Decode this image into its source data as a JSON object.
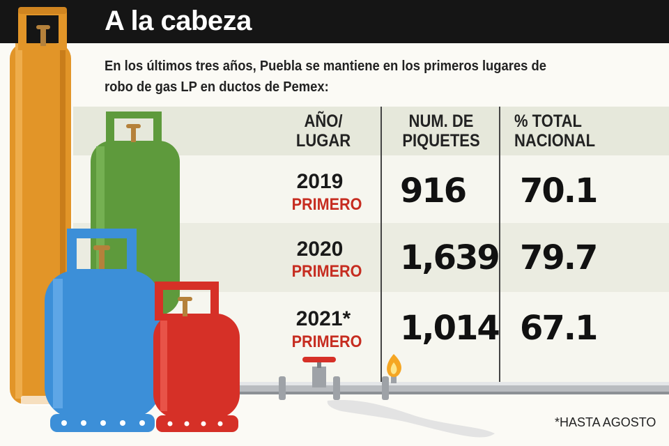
{
  "title": "A la cabeza",
  "subtitle": "En los últimos tres años, Puebla se mantiene en los primeros lugares de robo de gas LP en ductos de Pemex:",
  "table": {
    "headers": [
      "AÑO/ LUGAR",
      "NUM. DE PIQUETES",
      "% TOTAL NACIONAL"
    ],
    "rows": [
      {
        "year": "2019",
        "rank": "PRIMERO",
        "piquetes": "916",
        "pct": "70.1"
      },
      {
        "year": "2020",
        "rank": "PRIMERO",
        "piquetes": "1,639",
        "pct": "79.7"
      },
      {
        "year": "2021*",
        "rank": "PRIMERO",
        "piquetes": "1,014",
        "pct": "67.1"
      }
    ]
  },
  "footnote": "*HASTA AGOSTO",
  "colors": {
    "header_bg": "#151515",
    "rank_red": "#c62c20",
    "tank_orange": "#e29528",
    "tank_green": "#5e9a3c",
    "tank_blue": "#3c8fd8",
    "tank_red": "#d63027",
    "band_tint": "#eceee2"
  },
  "icons": [
    "gas-tank-orange-icon",
    "gas-tank-green-icon",
    "gas-tank-blue-icon",
    "gas-tank-red-icon",
    "pipeline-icon",
    "valve-icon",
    "flame-icon",
    "mexico-map-icon"
  ]
}
